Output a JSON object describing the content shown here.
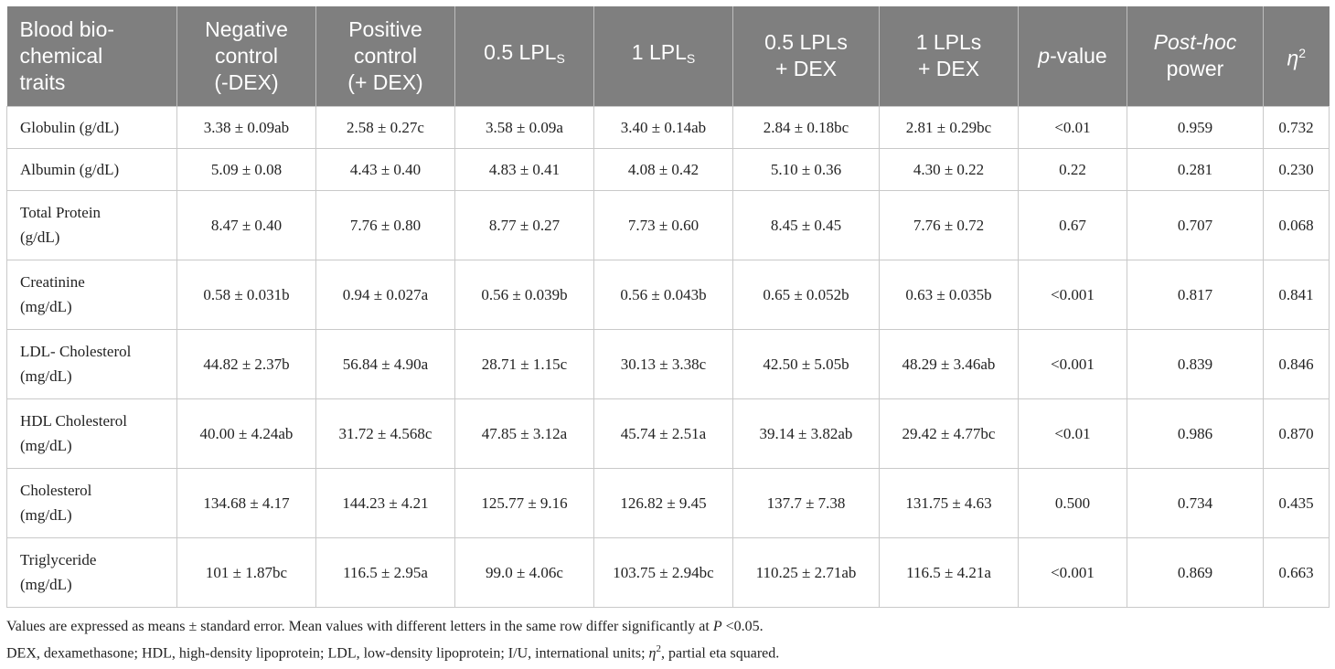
{
  "table": {
    "headers": [
      {
        "line1": "Blood bio-",
        "line2": "chemical",
        "line3": "traits"
      },
      {
        "line1": "Negative",
        "line2": "control",
        "line3": "(-DEX)"
      },
      {
        "line1": "Positive",
        "line2": "control",
        "line3": "(+ DEX)"
      },
      {
        "prefix": "0.5 LPL",
        "sub": "S"
      },
      {
        "prefix": "1 LPL",
        "sub": "S"
      },
      {
        "line1": "0.5 LPLs",
        "line2": "+ DEX"
      },
      {
        "line1": "1 LPLs",
        "line2": "+ DEX"
      },
      {
        "italic": "p",
        "rest": "-value"
      },
      {
        "line1": "Post-hoc",
        "line2": "power"
      },
      {
        "symbol": "η",
        "sup": "2"
      }
    ],
    "rows": [
      {
        "trait": [
          "Globulin (g/dL)"
        ],
        "cells": [
          "3.38 ± 0.09ab",
          "2.58 ± 0.27c",
          "3.58 ± 0.09a",
          "3.40 ± 0.14ab",
          "2.84 ± 0.18bc",
          "2.81 ± 0.29bc",
          "<0.01",
          "0.959",
          "0.732"
        ]
      },
      {
        "trait": [
          "Albumin (g/dL)"
        ],
        "cells": [
          "5.09 ± 0.08",
          "4.43 ± 0.40",
          "4.83 ± 0.41",
          "4.08 ± 0.42",
          "5.10 ± 0.36",
          "4.30 ± 0.22",
          "0.22",
          "0.281",
          "0.230"
        ]
      },
      {
        "trait": [
          "Total Protein",
          "(g/dL)"
        ],
        "cells": [
          "8.47 ± 0.40",
          "7.76 ± 0.80",
          "8.77 ± 0.27",
          "7.73 ± 0.60",
          "8.45 ± 0.45",
          "7.76 ± 0.72",
          "0.67",
          "0.707",
          "0.068"
        ]
      },
      {
        "trait": [
          "Creatinine",
          "(mg/dL)"
        ],
        "cells": [
          "0.58 ± 0.031b",
          "0.94 ± 0.027a",
          "0.56 ± 0.039b",
          "0.56 ± 0.043b",
          "0.65 ± 0.052b",
          "0.63 ± 0.035b",
          "<0.001",
          "0.817",
          "0.841"
        ]
      },
      {
        "trait": [
          "LDL- Cholesterol",
          "(mg/dL)"
        ],
        "cells": [
          "44.82 ± 2.37b",
          "56.84 ± 4.90a",
          "28.71 ± 1.15c",
          "30.13 ± 3.38c",
          "42.50 ± 5.05b",
          "48.29 ± 3.46ab",
          "<0.001",
          "0.839",
          "0.846"
        ]
      },
      {
        "trait": [
          "HDL Cholesterol",
          "(mg/dL)"
        ],
        "cells": [
          "40.00 ± 4.24ab",
          "31.72 ± 4.568c",
          "47.85 ± 3.12a",
          "45.74 ± 2.51a",
          "39.14 ± 3.82ab",
          "29.42 ± 4.77bc",
          "<0.01",
          "0.986",
          "0.870"
        ]
      },
      {
        "trait": [
          "Cholesterol",
          "(mg/dL)"
        ],
        "cells": [
          "134.68 ± 4.17",
          "144.23 ± 4.21",
          "125.77 ± 9.16",
          "126.82 ± 9.45",
          "137.7 ± 7.38",
          "131.75 ± 4.63",
          "0.500",
          "0.734",
          "0.435"
        ]
      },
      {
        "trait": [
          "Triglyceride",
          "(mg/dL)"
        ],
        "cells": [
          "101 ± 1.87bc",
          "116.5 ± 2.95a",
          "99.0 ± 4.06c",
          "103.75 ± 2.94bc",
          "110.25 ± 2.71ab",
          "116.5 ± 4.21a",
          "<0.001",
          "0.869",
          "0.663"
        ]
      }
    ]
  },
  "footnotes": {
    "line1_pre": "Values are expressed as means ± standard error. Mean values with different letters in the same row differ significantly at ",
    "line1_p": "P",
    "line1_post": " <0.05.",
    "line2_pre": "DEX, dexamethasone; HDL, high-density lipoprotein; LDL, low-density lipoprotein; I/U, international units; ",
    "line2_eta": "η",
    "line2_sup": "2",
    "line2_post": ", partial eta squared."
  }
}
